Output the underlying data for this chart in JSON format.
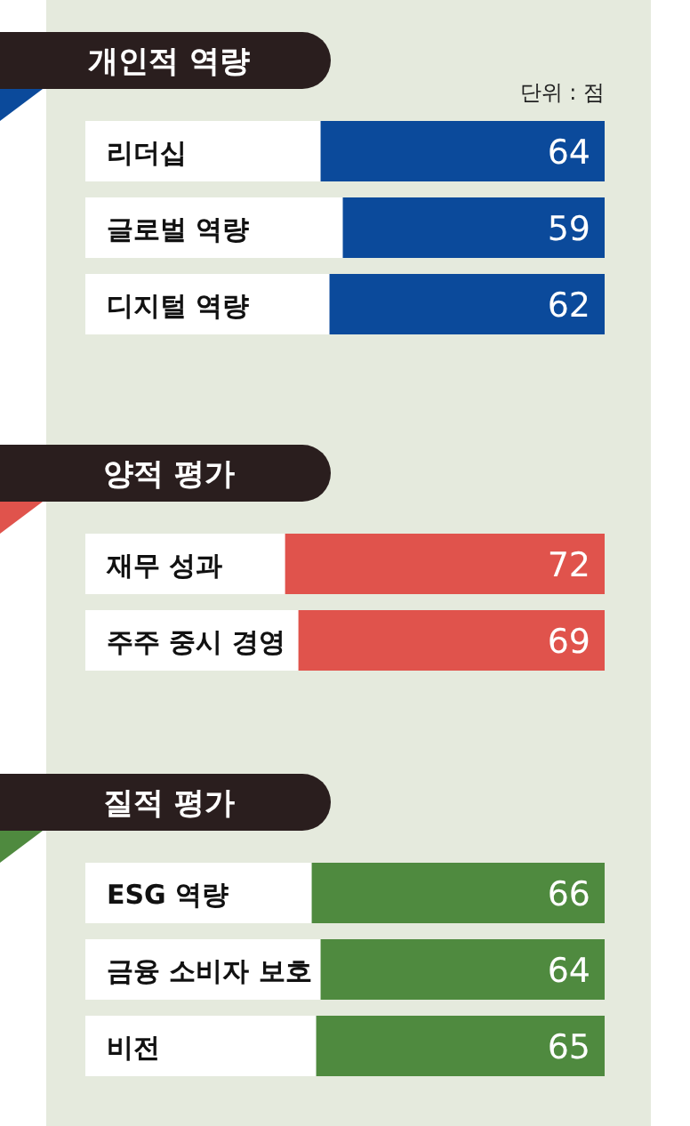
{
  "chart_data": [
    {
      "type": "bar",
      "orientation": "horizontal",
      "title": "개인적 역량",
      "annotations": [
        "단위 : 점"
      ],
      "categories": [
        "리더십",
        "글로벌 역량",
        "디지털 역량"
      ],
      "values": [
        64,
        59,
        62
      ],
      "color": "#0b4a9b",
      "data_labels": true,
      "xlim": [
        117,
        0
      ]
    },
    {
      "type": "bar",
      "orientation": "horizontal",
      "title": "양적 평가",
      "categories": [
        "재무 성과",
        "주주 중시 경영"
      ],
      "values": [
        72,
        69
      ],
      "color": "#e0534c",
      "data_labels": true,
      "xlim": [
        117,
        0
      ]
    },
    {
      "type": "bar",
      "orientation": "horizontal",
      "title": "질적 평가",
      "categories": [
        "ESG 역량",
        "금융 소비자 보호",
        "비전"
      ],
      "values": [
        66,
        64,
        65
      ],
      "color": "#4f8a3f",
      "data_labels": true,
      "xlim": [
        117,
        0
      ]
    }
  ]
}
